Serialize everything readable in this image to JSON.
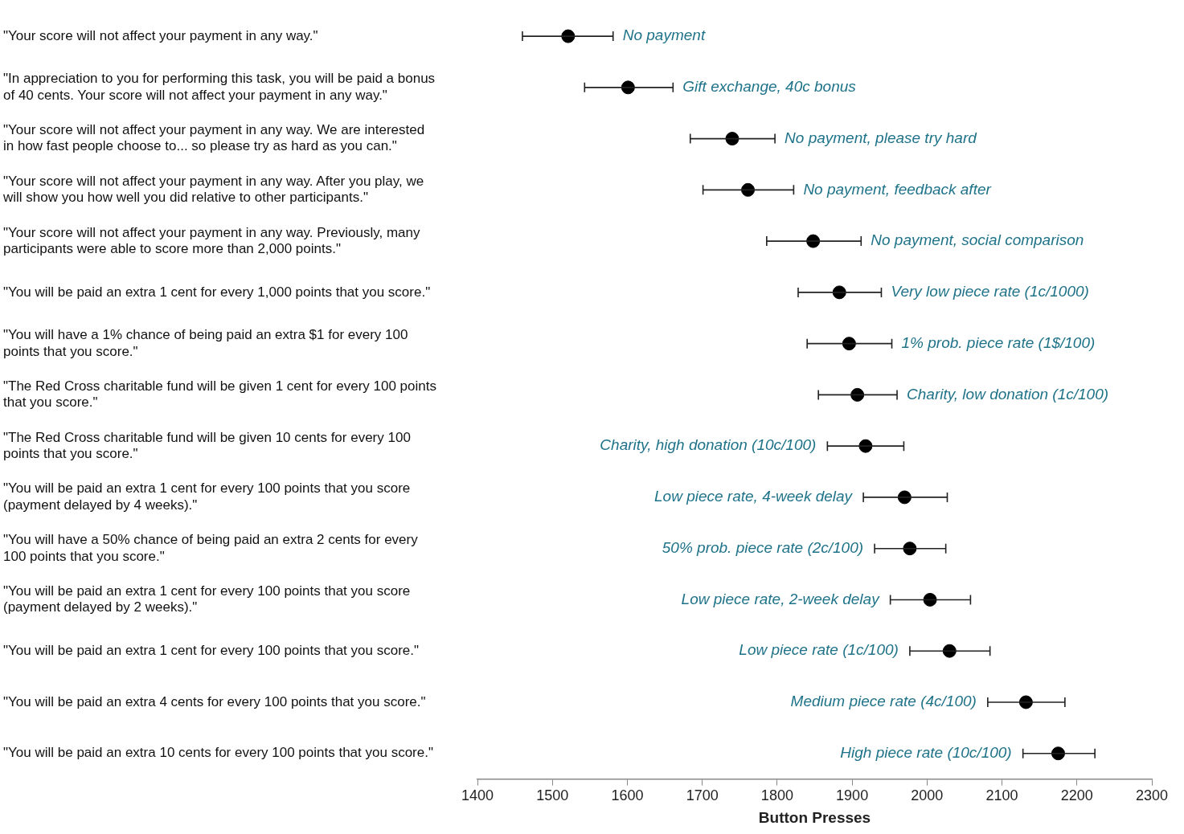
{
  "chart_data": {
    "type": "scatter",
    "orientation": "horizontal",
    "xlabel": "Button Presses",
    "categories": [
      "\"Your score will not affect your payment in any way.\"",
      "\"In appreciation to you for performing this task, you will be paid a bonus of 40 cents. Your score will not affect your payment in any way.\"",
      "\"Your score will not affect your payment in any way. We are interested in how fast people choose to... so please try as hard as you can.\"",
      "\"Your score will not affect your payment in any way. After you play, we will show you how well you did relative to other participants.\"",
      "\"Your score will not affect your payment in any way. Previously, many participants were able to score more than 2,000 points.\"",
      "\"You will be paid an extra 1 cent for every 1,000 points that you score.\"",
      "\"You will have a 1% chance of being paid an extra $1 for every 100 points that you score.\"",
      "\"The Red Cross charitable fund will be given 1 cent for every 100 points that you score.\"",
      "\"The Red Cross charitable fund will be given 10 cents for every 100 points that you score.\"",
      "\"You will be paid an extra 1 cent for every 100 points that you score (payment delayed by 4 weeks).\"",
      "\"You will have a 50% chance of being paid an extra 2 cents for every 100 points that you score.\"",
      "\"You will be paid an extra 1 cent for every 100 points that you score (payment delayed by 2 weeks).\"",
      "\"You will be paid an extra 1 cent for every 100 points that you score.\"",
      "\"You will be paid an extra 4 cents for every 100 points that you score.\"",
      "\"You will be paid an extra 10 cents for every 100 points that you score.\""
    ],
    "values": [
      1521,
      1601,
      1740,
      1761,
      1848,
      1883,
      1896,
      1907,
      1918,
      1970,
      1977,
      2004,
      2030,
      2132,
      2175
    ],
    "errors": [
      [
        1460,
        1581
      ],
      [
        1543,
        1661
      ],
      [
        1684,
        1797
      ],
      [
        1701,
        1822
      ],
      [
        1786,
        1912
      ],
      [
        1828,
        1939
      ],
      [
        1840,
        1953
      ],
      [
        1855,
        1960
      ],
      [
        1867,
        1969
      ],
      [
        1915,
        2027
      ],
      [
        1930,
        2025
      ],
      [
        1951,
        2058
      ],
      [
        1977,
        2084
      ],
      [
        2081,
        2184
      ],
      [
        2128,
        2224
      ]
    ],
    "color": "#000000",
    "marker": "circle",
    "grid": false,
    "legend": false,
    "xlim": [
      1400,
      2300
    ],
    "xticks": [
      1400,
      1500,
      1600,
      1700,
      1800,
      1900,
      2000,
      2100,
      2200,
      2300
    ],
    "annotations": [
      "No payment",
      "Gift exchange, 40c bonus",
      "No payment, please try hard",
      "No payment, feedback after",
      "No payment, social comparison",
      "Very low piece rate (1c/1000)",
      "1% prob. piece rate (1$/100)",
      "Charity, low donation (1c/100)",
      "Charity, high donation (10c/100)",
      "Low piece rate, 4-week delay",
      "50% prob. piece rate (2c/100)",
      "Low piece rate, 2-week delay",
      "Low piece rate (1c/100)",
      "Medium piece rate (4c/100)",
      "High piece rate (10c/100)"
    ]
  }
}
